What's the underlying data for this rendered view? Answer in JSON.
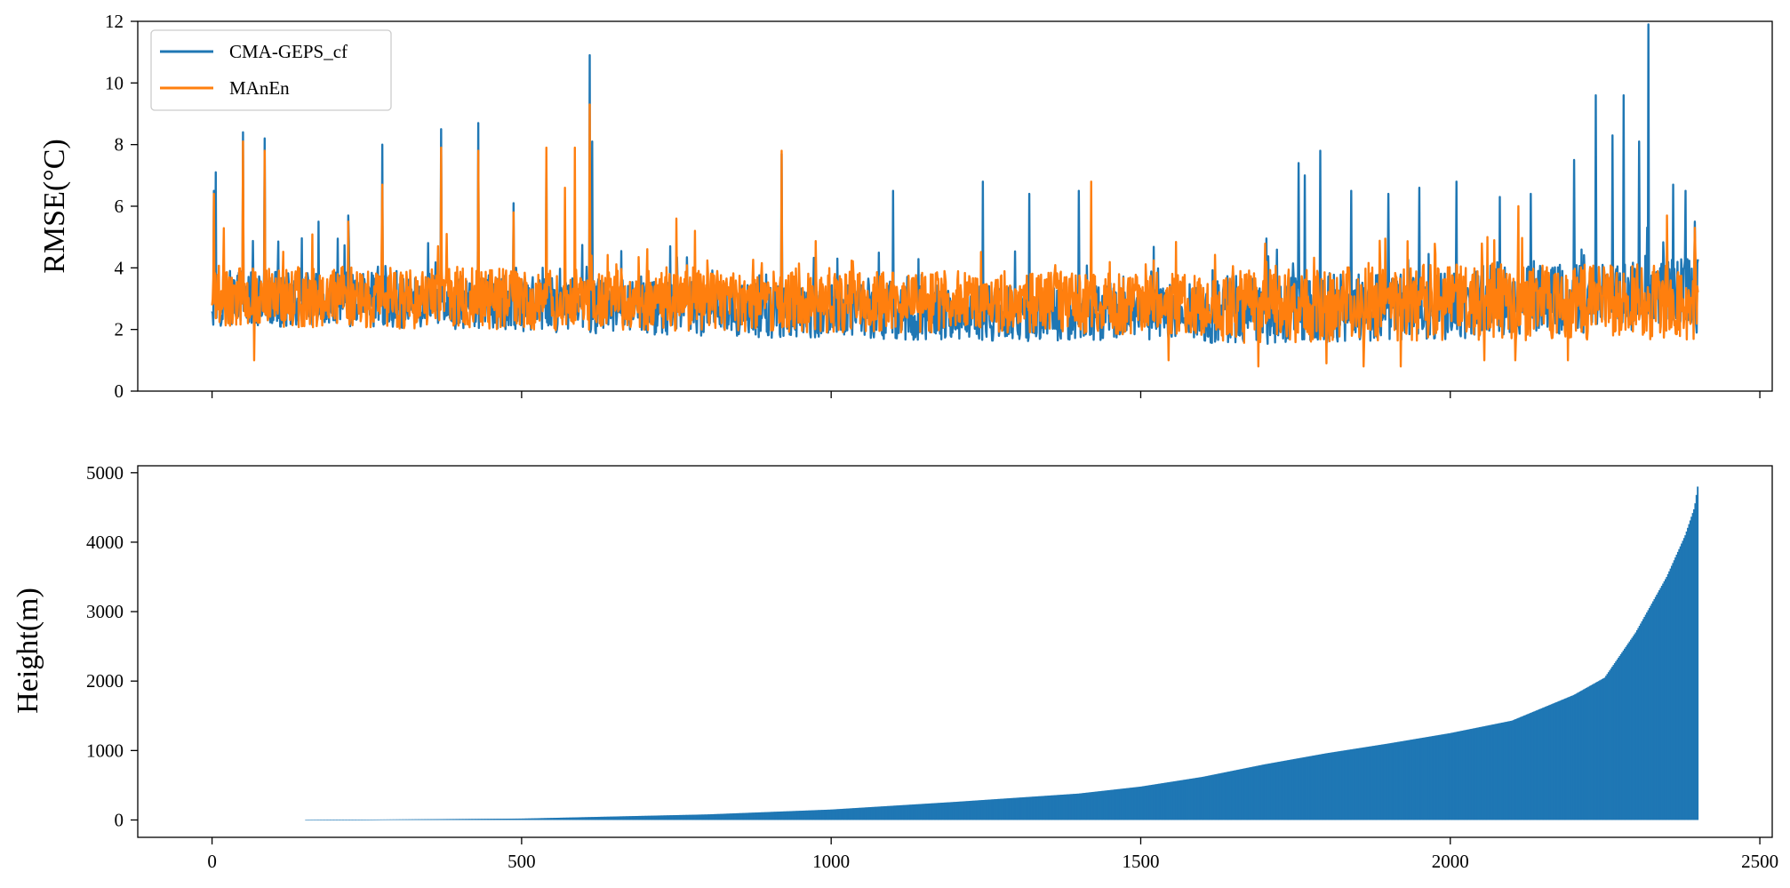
{
  "colors": {
    "blue": "#1f77b4",
    "orange": "#ff7f0e",
    "frame": "#000000",
    "legend_border": "#cccccc"
  },
  "chart_data": [
    {
      "type": "line",
      "xlabel": "",
      "ylabel": "RMSE(°C)",
      "xlim": [
        -120,
        2520
      ],
      "ylim": [
        0,
        12
      ],
      "xticks": [
        0,
        500,
        1000,
        1500,
        2000,
        2500
      ],
      "xtick_labels_shown": false,
      "yticks": [
        0,
        2,
        4,
        6,
        8,
        10,
        12
      ],
      "grid": false,
      "legend": {
        "placement": "upper-left",
        "entries": [
          "CMA-GEPS_cf",
          "MAnEn"
        ]
      },
      "x_range": [
        0,
        2400
      ],
      "series": [
        {
          "name": "CMA-GEPS_cf",
          "color": "#1f77b4",
          "baseline_segments": [
            [
              0,
              3.0
            ],
            [
              400,
              2.9
            ],
            [
              900,
              2.6
            ],
            [
              1300,
              2.5
            ],
            [
              1600,
              2.6
            ],
            [
              2000,
              2.8
            ],
            [
              2200,
              3.0
            ],
            [
              2400,
              3.2
            ]
          ],
          "noise_amplitude": 0.9,
          "peaks": [
            [
              3,
              6.5
            ],
            [
              6,
              7.1
            ],
            [
              50,
              8.4
            ],
            [
              85,
              8.2
            ],
            [
              172,
              5.5
            ],
            [
              220,
              5.7
            ],
            [
              275,
              8.0
            ],
            [
              370,
              8.5
            ],
            [
              430,
              8.7
            ],
            [
              487,
              6.1
            ],
            [
              540,
              7.6
            ],
            [
              610,
              10.9
            ],
            [
              614,
              8.1
            ],
            [
              740,
              4.7
            ],
            [
              920,
              7.7
            ],
            [
              1010,
              4.3
            ],
            [
              1100,
              6.5
            ],
            [
              1245,
              6.8
            ],
            [
              1320,
              6.4
            ],
            [
              1400,
              6.5
            ],
            [
              1755,
              7.4
            ],
            [
              1765,
              7.0
            ],
            [
              1790,
              7.8
            ],
            [
              1840,
              6.5
            ],
            [
              1900,
              6.4
            ],
            [
              1950,
              6.6
            ],
            [
              2010,
              6.8
            ],
            [
              2080,
              6.3
            ],
            [
              2130,
              6.4
            ],
            [
              2200,
              7.5
            ],
            [
              2235,
              9.6
            ],
            [
              2262,
              8.3
            ],
            [
              2280,
              9.6
            ],
            [
              2305,
              8.1
            ],
            [
              2320,
              11.9
            ],
            [
              2360,
              6.7
            ],
            [
              2380,
              6.5
            ],
            [
              2395,
              5.5
            ],
            [
              2398,
              1.9
            ]
          ]
        },
        {
          "name": "MAnEn",
          "color": "#ff7f0e",
          "baseline_segments": [
            [
              0,
              3.1
            ],
            [
              400,
              3.0
            ],
            [
              900,
              2.9
            ],
            [
              1300,
              2.9
            ],
            [
              1600,
              2.8
            ],
            [
              2000,
              2.9
            ],
            [
              2200,
              2.9
            ],
            [
              2400,
              2.9
            ]
          ],
          "noise_amplitude": 1.0,
          "peaks": [
            [
              3,
              6.4
            ],
            [
              50,
              8.1
            ],
            [
              85,
              7.8
            ],
            [
              220,
              5.5
            ],
            [
              275,
              6.7
            ],
            [
              370,
              7.9
            ],
            [
              430,
              7.8
            ],
            [
              487,
              5.8
            ],
            [
              540,
              7.9
            ],
            [
              570,
              6.6
            ],
            [
              586,
              7.9
            ],
            [
              610,
              9.3
            ],
            [
              750,
              5.6
            ],
            [
              780,
              5.2
            ],
            [
              920,
              7.8
            ],
            [
              1420,
              6.8
            ],
            [
              2060,
              5.0
            ],
            [
              2110,
              6.0
            ],
            [
              2350,
              5.7
            ],
            [
              2395,
              5.3
            ]
          ],
          "dips": [
            [
              68,
              1.0
            ],
            [
              1545,
              1.0
            ],
            [
              1690,
              0.8
            ],
            [
              1800,
              0.9
            ],
            [
              1860,
              0.8
            ],
            [
              1920,
              0.8
            ],
            [
              2055,
              1.0
            ],
            [
              2105,
              1.0
            ],
            [
              2190,
              1.0
            ]
          ]
        }
      ]
    },
    {
      "type": "bar",
      "xlabel": "",
      "ylabel": "Height(m)",
      "xlim": [
        -120,
        2520
      ],
      "ylim": [
        -250,
        5100
      ],
      "xticks": [
        0,
        500,
        1000,
        1500,
        2000,
        2500
      ],
      "yticks": [
        0,
        1000,
        2000,
        3000,
        4000,
        5000
      ],
      "grid": false,
      "series": [
        {
          "name": "",
          "color": "#1f77b4",
          "x_range": [
            0,
            2400
          ],
          "values_profile": [
            [
              0,
              0
            ],
            [
              150,
              0
            ],
            [
              500,
              20
            ],
            [
              800,
              80
            ],
            [
              1000,
              150
            ],
            [
              1200,
              260
            ],
            [
              1400,
              380
            ],
            [
              1500,
              480
            ],
            [
              1600,
              620
            ],
            [
              1700,
              800
            ],
            [
              1800,
              960
            ],
            [
              1900,
              1100
            ],
            [
              2000,
              1250
            ],
            [
              2100,
              1430
            ],
            [
              2200,
              1800
            ],
            [
              2250,
              2050
            ],
            [
              2300,
              2700
            ],
            [
              2350,
              3500
            ],
            [
              2380,
              4100
            ],
            [
              2395,
              4500
            ],
            [
              2400,
              4800
            ]
          ]
        }
      ]
    }
  ]
}
